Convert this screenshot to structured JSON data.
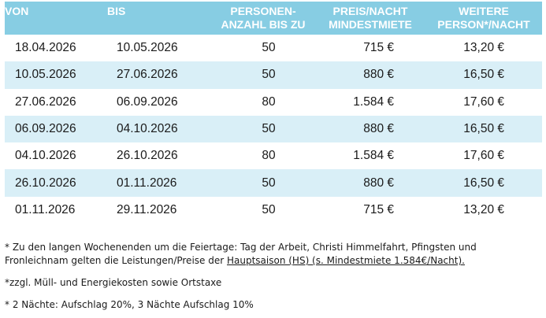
{
  "table": {
    "headers": {
      "von": "VON",
      "bis": "BIS",
      "personen_line1": "PERSONEN-",
      "personen_line2": "ANZAHL BIS ZU",
      "preis_line1": "PREIS/NACHT",
      "preis_line2": "MINDESTMIETE",
      "weitere_line1": "WEITERE",
      "weitere_line2": "PERSON*/NACHT"
    },
    "rows": [
      {
        "von": "18.04.2026",
        "bis": "10.05.2026",
        "personen": "50",
        "preis": "715 €",
        "weitere": "13,20 €"
      },
      {
        "von": "10.05.2026",
        "bis": "27.06.2026",
        "personen": "50",
        "preis": "880 €",
        "weitere": "16,50 €"
      },
      {
        "von": "27.06.2026",
        "bis": "06.09.2026",
        "personen": "80",
        "preis": "1.584 €",
        "weitere": "17,60 €"
      },
      {
        "von": "06.09.2026",
        "bis": "04.10.2026",
        "personen": "50",
        "preis": "880 €",
        "weitere": "16,50 €"
      },
      {
        "von": "04.10.2026",
        "bis": "26.10.2026",
        "personen": "80",
        "preis": "1.584 €",
        "weitere": "17,60 €"
      },
      {
        "von": "26.10.2026",
        "bis": "01.11.2026",
        "personen": "50",
        "preis": "880 €",
        "weitere": "16,50 €"
      },
      {
        "von": "01.11.2026",
        "bis": "29.11.2026",
        "personen": "50",
        "preis": "715 €",
        "weitere": "13,20 €"
      }
    ]
  },
  "notes": {
    "note1_text": "* Zu den langen Wochenenden um die Feiertage: Tag der Arbeit, Christi Himmelfahrt, Pfingsten und Fronleichnam gelten die Leistungen/Preise der ",
    "note1_link": "Hauptsaison (HS) (s. Mindestmiete 1.584€/Nacht).",
    "note2": "*zzgl. Müll- und Energiekosten sowie Ortstaxe",
    "note3": "* 2 Nächte: Aufschlag 20%, 3 Nächte Aufschlag 10%"
  },
  "colors": {
    "header_bg": "#87cde3",
    "alt_row_bg": "#d9eff7",
    "header_text": "#ffffff"
  }
}
